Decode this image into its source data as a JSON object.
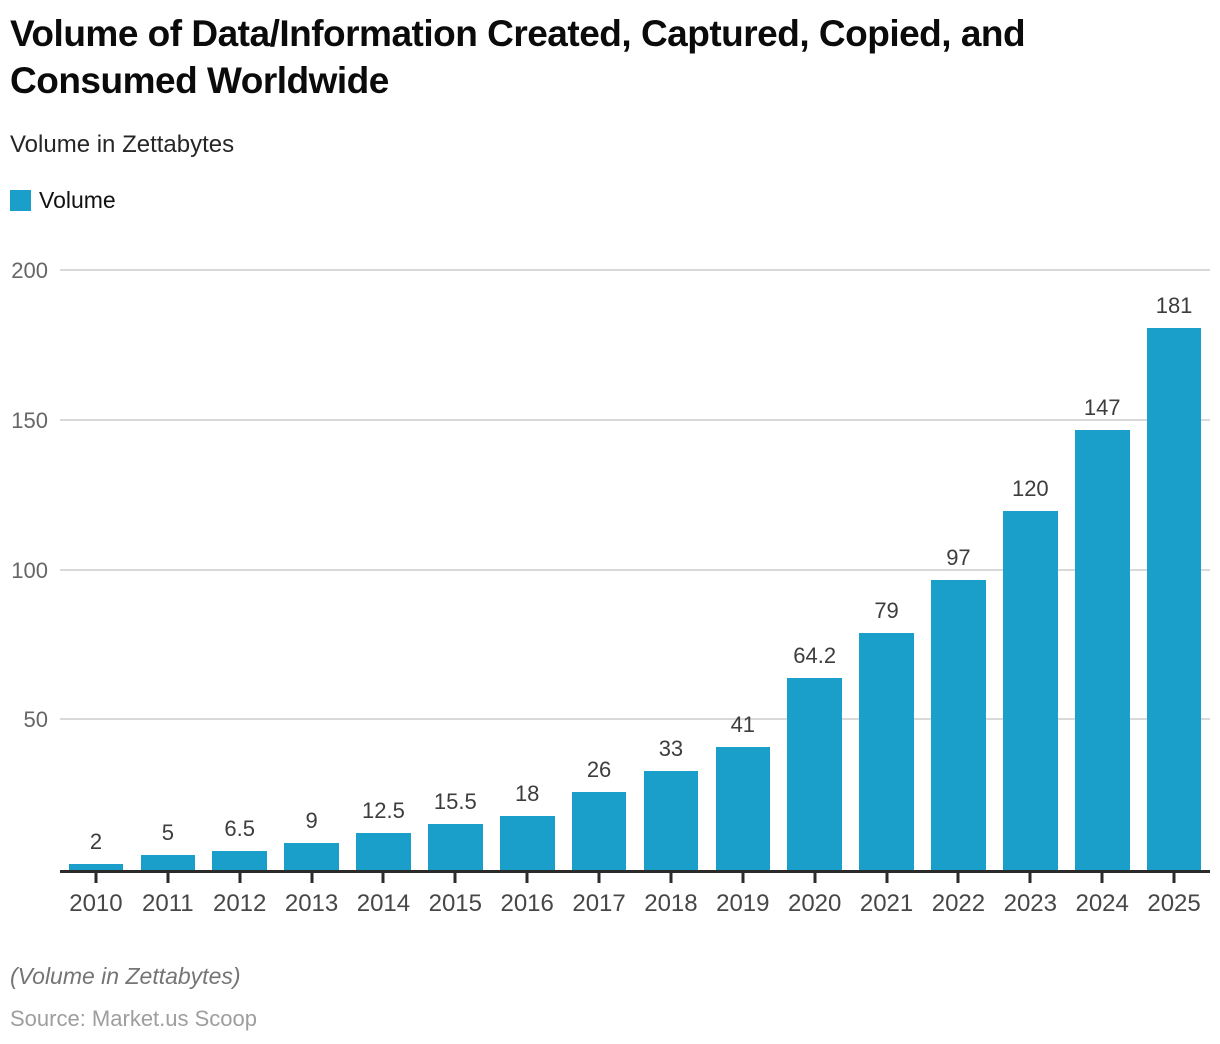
{
  "title": {
    "line1": "Volume of Data/Information Created, Captured, Copied, and",
    "line2": "Consumed Worldwide"
  },
  "subtitle": "Volume in Zettabytes",
  "legend": {
    "label": "Volume"
  },
  "footnote": "(Volume in Zettabytes)",
  "source": "Source: Market.us Scoop",
  "colors": {
    "accent": "#1A9FCB",
    "gridline": "#d9d9d9",
    "axis": "#2b2b2b",
    "value_label": "#3d3d3d",
    "axis_label": "#474747",
    "ytick_label": "#666666"
  },
  "chart_data": {
    "type": "bar",
    "title": "Volume of Data/Information Created, Captured, Copied, and Consumed Worldwide",
    "subtitle": "Volume in Zettabytes",
    "categories": [
      "2010",
      "2011",
      "2012",
      "2013",
      "2014",
      "2015",
      "2016",
      "2017",
      "2018",
      "2019",
      "2020",
      "2021",
      "2022",
      "2023",
      "2024",
      "2025"
    ],
    "values": [
      2,
      5,
      6.5,
      9,
      12.5,
      15.5,
      18,
      26,
      33,
      41,
      64.2,
      79,
      97,
      120,
      147,
      181
    ],
    "series_name": "Volume",
    "xlabel": "",
    "ylabel": "Volume in Zettabytes",
    "ylim": [
      0,
      200
    ],
    "yticks": [
      50,
      100,
      150,
      200
    ],
    "grid": true,
    "legend_position": "top-left",
    "bar_color": "#1A9FCB"
  }
}
